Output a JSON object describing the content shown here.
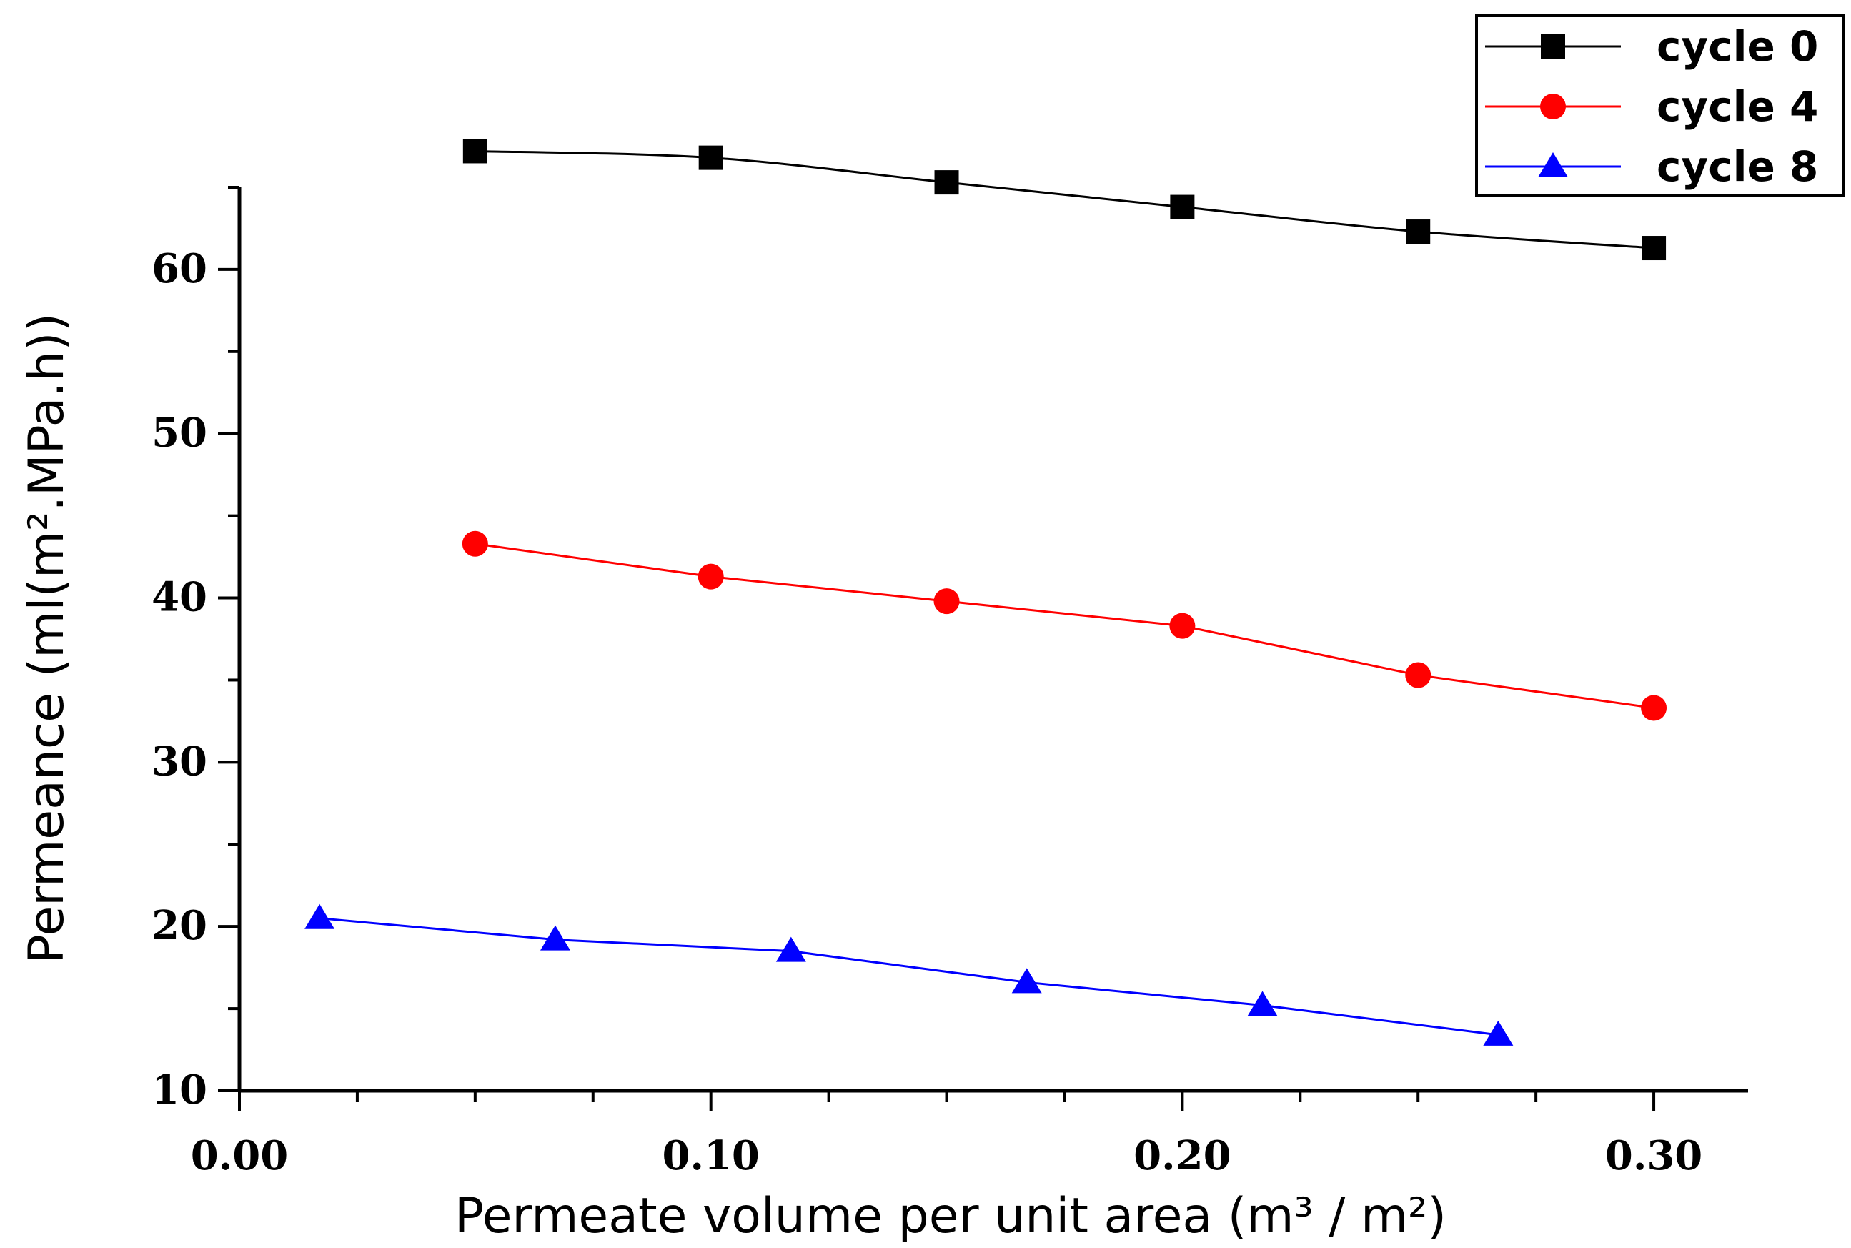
{
  "chart_data": {
    "type": "line",
    "title": "",
    "xlabel": "Permeate volume per unit area (m³ / m²)",
    "ylabel": "Permeance (ml(m².MPa.h))",
    "xlim": [
      0.0,
      0.32
    ],
    "ylim": [
      10,
      65
    ],
    "x_ticks": [
      0.0,
      0.1,
      0.2,
      0.3
    ],
    "x_tick_labels": [
      "0.00",
      "0.10",
      "0.20",
      "0.30"
    ],
    "y_ticks": [
      10,
      20,
      30,
      40,
      50,
      60
    ],
    "y_tick_labels": [
      "10",
      "20",
      "30",
      "40",
      "50",
      "60"
    ],
    "grid": false,
    "legend_position": "top-right",
    "series": [
      {
        "name": "cycle 0",
        "color": "#000000",
        "marker": "square",
        "smooth": true,
        "x": [
          0.05,
          0.1,
          0.15,
          0.2,
          0.25,
          0.3
        ],
        "y": [
          67.2,
          66.8,
          65.3,
          63.8,
          62.3,
          61.3
        ]
      },
      {
        "name": "cycle 4",
        "color": "#ff0000",
        "marker": "circle",
        "smooth": false,
        "x": [
          0.05,
          0.1,
          0.15,
          0.2,
          0.25,
          0.3
        ],
        "y": [
          43.3,
          41.3,
          39.8,
          38.3,
          35.3,
          33.3
        ]
      },
      {
        "name": "cycle 8",
        "color": "#0000ff",
        "marker": "triangle",
        "smooth": false,
        "x": [
          0.017,
          0.067,
          0.117,
          0.167,
          0.217,
          0.267
        ],
        "y": [
          20.5,
          19.2,
          18.5,
          16.6,
          15.2,
          13.4
        ]
      }
    ]
  }
}
